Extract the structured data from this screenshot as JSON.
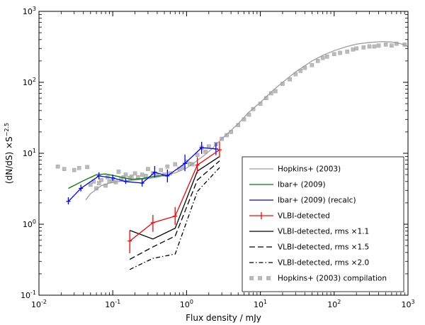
{
  "chart_data": {
    "type": "line",
    "title": "",
    "xlabel": "Flux density / mJy",
    "ylabel_prefix": "(dN/dS) ×S",
    "ylabel_exponent": "−2.5",
    "xscale": "log",
    "yscale": "log",
    "xlim": [
      0.01,
      1000
    ],
    "ylim": [
      0.1,
      1000
    ],
    "x_ticks": [
      {
        "base": "10",
        "exp": "-2"
      },
      {
        "base": "10",
        "exp": "-1"
      },
      {
        "base": "10",
        "exp": "0"
      },
      {
        "base": "10",
        "exp": "1"
      },
      {
        "base": "10",
        "exp": "2"
      },
      {
        "base": "10",
        "exp": "3"
      }
    ],
    "y_ticks": [
      {
        "base": "10",
        "exp": "-1"
      },
      {
        "base": "10",
        "exp": "0"
      },
      {
        "base": "10",
        "exp": "1"
      },
      {
        "base": "10",
        "exp": "2"
      },
      {
        "base": "10",
        "exp": "3"
      }
    ],
    "legend_position": "lower-right",
    "series": [
      {
        "name": "Hopkins+ (2003)",
        "kind": "line",
        "color": "#9e9e9e",
        "dash": "",
        "x": [
          0.043,
          0.05,
          0.06,
          0.07,
          0.09,
          0.12,
          0.16,
          0.2,
          0.3,
          0.4,
          0.5,
          0.7,
          1,
          1.3,
          1.7,
          2.2,
          3,
          4,
          5,
          7,
          10,
          15,
          20,
          30,
          50,
          70,
          100,
          150,
          200,
          300,
          450,
          600,
          800,
          1000
        ],
        "y": [
          2.2,
          2.7,
          3.1,
          3.5,
          3.8,
          4.0,
          4.1,
          4.2,
          4.4,
          4.6,
          4.9,
          5.3,
          6.2,
          7.5,
          9.2,
          11.5,
          16,
          21,
          26,
          38,
          52,
          78,
          100,
          140,
          200,
          240,
          280,
          320,
          345,
          365,
          375,
          370,
          350,
          320
        ]
      },
      {
        "name": "Ibar+ (2009)",
        "kind": "line",
        "color": "#007f00",
        "dash": "",
        "x": [
          0.025,
          0.04,
          0.06,
          0.08,
          0.12,
          0.18,
          0.25,
          0.35,
          0.5
        ],
        "y": [
          3.2,
          4.1,
          5.0,
          5.1,
          4.7,
          4.3,
          4.4,
          4.7,
          4.9
        ]
      },
      {
        "name": "Ibar+ (2009) (recalc)",
        "kind": "errorline",
        "color": "#0000ff",
        "dash": "",
        "x": [
          0.025,
          0.037,
          0.065,
          0.1,
          0.15,
          0.25,
          0.37,
          0.55,
          0.95,
          1.6,
          2.5
        ],
        "y": [
          2.1,
          3.2,
          4.8,
          4.5,
          4.0,
          3.8,
          5.4,
          4.8,
          7.2,
          12.0,
          11.5
        ],
        "yerr_lo": [
          1.9,
          2.9,
          4.3,
          4.1,
          3.7,
          3.4,
          4.6,
          3.9,
          5.6,
          9.8,
          9.4
        ],
        "yerr_hi": [
          2.4,
          3.6,
          5.4,
          5.0,
          4.4,
          4.3,
          6.6,
          5.9,
          9.6,
          14.5,
          14.0
        ]
      },
      {
        "name": "VLBI-detected",
        "kind": "errorline",
        "color": "#ff0000",
        "dash": "",
        "x": [
          0.17,
          0.35,
          0.7,
          1.4,
          2.8
        ],
        "y": [
          0.58,
          1.05,
          1.3,
          6.8,
          11.2
        ],
        "yerr_lo": [
          0.39,
          0.78,
          0.98,
          5.2,
          8.8
        ],
        "yerr_hi": [
          0.82,
          1.35,
          1.75,
          8.8,
          14.5
        ]
      },
      {
        "name": "VLBI-detected, rms ×1.1",
        "kind": "line",
        "color": "#000000",
        "dash": "",
        "x": [
          0.17,
          0.35,
          0.7,
          1.4,
          2.8
        ],
        "y": [
          0.82,
          0.62,
          0.88,
          5.6,
          9.0
        ]
      },
      {
        "name": "VLBI-detected, rms ×1.5",
        "kind": "line",
        "color": "#000000",
        "dash": "8,4",
        "x": [
          0.17,
          0.35,
          0.7,
          1.4,
          2.8
        ],
        "y": [
          0.32,
          0.48,
          0.68,
          4.2,
          7.8
        ]
      },
      {
        "name": "VLBI-detected, rms ×2.0",
        "kind": "line",
        "color": "#000000",
        "dash": "6,3,1.5,3",
        "x": [
          0.17,
          0.35,
          0.7,
          1.4,
          2.8
        ],
        "y": [
          0.23,
          0.33,
          0.38,
          2.9,
          6.3
        ]
      },
      {
        "name": "Hopkins+ (2003) compilation",
        "kind": "scatter",
        "color": "#aaaaaa",
        "dash": "",
        "x": [
          0.018,
          0.022,
          0.03,
          0.035,
          0.045,
          0.05,
          0.055,
          0.06,
          0.065,
          0.07,
          0.08,
          0.085,
          0.09,
          0.1,
          0.11,
          0.12,
          0.13,
          0.14,
          0.15,
          0.17,
          0.18,
          0.2,
          0.22,
          0.25,
          0.28,
          0.3,
          0.35,
          0.4,
          0.45,
          0.5,
          0.55,
          0.6,
          0.7,
          0.8,
          0.9,
          1.0,
          1.1,
          1.2,
          1.4,
          1.6,
          1.8,
          2.0,
          2.5,
          3,
          3.5,
          4,
          5,
          6,
          7,
          8,
          10,
          12,
          14,
          16,
          20,
          25,
          30,
          35,
          40,
          50,
          60,
          70,
          80,
          100,
          120,
          150,
          180,
          200,
          250,
          300,
          350,
          400,
          500,
          600,
          700,
          900
        ],
        "y": [
          6.5,
          6.0,
          5.8,
          6.2,
          6.4,
          3.6,
          4.0,
          3.2,
          3.8,
          4.2,
          3.5,
          4.6,
          4.0,
          4.1,
          3.9,
          5.5,
          4.3,
          4.6,
          5.0,
          4.5,
          4.7,
          5.2,
          4.6,
          5.0,
          4.8,
          6.0,
          5.2,
          4.9,
          5.8,
          5.0,
          6.5,
          5.2,
          7.0,
          6.0,
          6.4,
          7.6,
          7.1,
          7.0,
          9.5,
          12.0,
          10.5,
          12.5,
          13.5,
          16,
          18,
          20,
          25,
          30,
          35,
          42,
          50,
          60,
          70,
          75,
          95,
          110,
          130,
          145,
          160,
          175,
          200,
          220,
          230,
          250,
          260,
          270,
          290,
          300,
          310,
          320,
          320,
          330,
          340,
          330,
          350,
          340
        ]
      }
    ]
  }
}
